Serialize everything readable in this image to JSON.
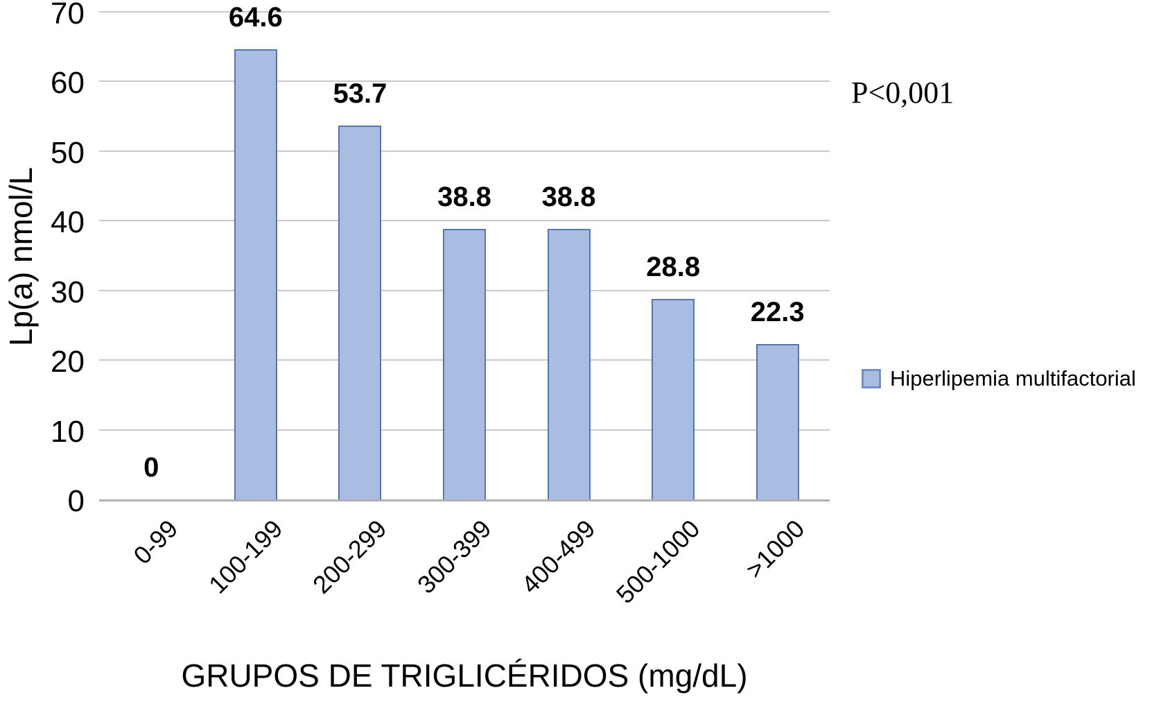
{
  "chart_data": {
    "type": "bar",
    "categories": [
      "0-99",
      "100-199",
      "200-299",
      "300-399",
      "400-499",
      "500-1000",
      ">1000"
    ],
    "values": [
      0,
      64.6,
      53.7,
      38.8,
      38.8,
      28.8,
      22.3
    ],
    "xlabel": "GRUPOS DE TRIGLICÉRIDOS (mg/dL)",
    "ylabel": "Lp(a) nmol/L",
    "ylim": [
      0,
      70
    ],
    "yticks": [
      0,
      10,
      20,
      30,
      40,
      50,
      60,
      70
    ],
    "grid": true,
    "legend": {
      "label": "Hiperlipemia multifactorial",
      "position": "right"
    },
    "annotation": "P<0,001",
    "colors": {
      "bar_fill": "#a9bce2",
      "bar_border": "#5376ac",
      "gridline": "#cdc5cf",
      "axis_line": "#b3aeb5",
      "legend_swatch_border": "#7191c9",
      "text": "#000000"
    }
  }
}
